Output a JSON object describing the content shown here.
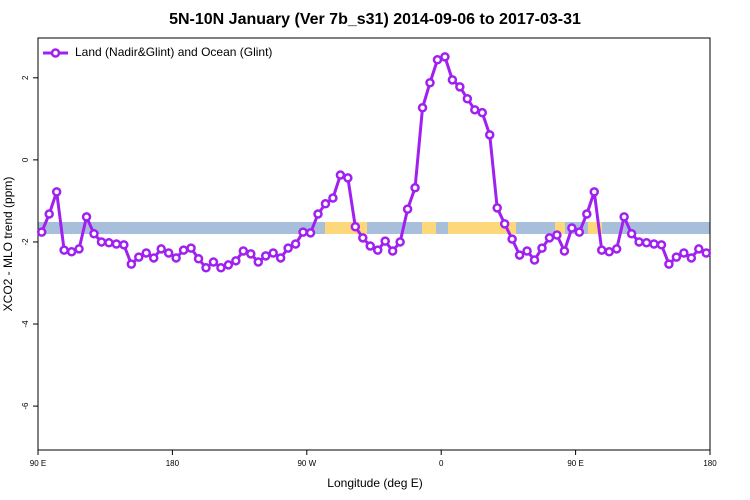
{
  "chart_data": {
    "type": "line",
    "title": "5N-10N January (Ver 7b_s31)   2014-09-06 to 2017-03-31",
    "x_label": "Longitude (deg E)",
    "y_label": "XCO2 - MLO trend (ppm)",
    "legend_position": "top-left",
    "xlim": [
      90,
      540
    ],
    "xticks": [
      {
        "value": 90,
        "label": "90 E"
      },
      {
        "value": 180,
        "label": "180"
      },
      {
        "value": 270,
        "label": "90 W"
      },
      {
        "value": 360,
        "label": "0"
      },
      {
        "value": 450,
        "label": "90 E"
      },
      {
        "value": 540,
        "label": "180"
      }
    ],
    "ylim": [
      -7.07,
      2.97
    ],
    "yticks": [
      -6,
      -4,
      -2,
      0,
      2
    ],
    "x": [
      92.5,
      97.5,
      102.5,
      107.5,
      112.5,
      117.5,
      122.5,
      127.5,
      132.5,
      137.5,
      142.5,
      147.5,
      152.5,
      157.5,
      162.5,
      167.5,
      172.5,
      177.5,
      182.5,
      187.5,
      192.5,
      197.5,
      202.5,
      207.5,
      212.5,
      217.5,
      222.5,
      227.5,
      232.5,
      237.5,
      242.5,
      247.5,
      252.5,
      257.5,
      262.5,
      267.5,
      272.5,
      277.5,
      282.5,
      287.5,
      292.5,
      297.5,
      302.5,
      307.5,
      312.5,
      317.5,
      322.5,
      327.5,
      332.5,
      337.5,
      342.5,
      347.5,
      352.5,
      357.5,
      362.5,
      367.5,
      372.5,
      377.5,
      382.5,
      387.5,
      392.5,
      397.5,
      402.5,
      407.5,
      412.5,
      417.5,
      422.5,
      427.5,
      432.5,
      437.5,
      442.5,
      447.5,
      452.5,
      457.5,
      462.5,
      467.5,
      472.5,
      477.5,
      482.5,
      487.5,
      492.5,
      497.5,
      502.5,
      507.5,
      512.5,
      517.5,
      522.5,
      527.5,
      532.5,
      537.5
    ],
    "series": [
      {
        "name": "Land (Nadir&Glint) and Ocean (Glint)",
        "color": "#a020f0",
        "values": [
          -1.76,
          -1.32,
          -0.78,
          -2.2,
          -2.24,
          -2.17,
          -1.39,
          -1.8,
          -2.0,
          -2.02,
          -2.05,
          -2.07,
          -2.54,
          -2.37,
          -2.27,
          -2.39,
          -2.17,
          -2.27,
          -2.39,
          -2.2,
          -2.15,
          -2.41,
          -2.63,
          -2.49,
          -2.63,
          -2.56,
          -2.46,
          -2.22,
          -2.29,
          -2.49,
          -2.34,
          -2.27,
          -2.39,
          -2.15,
          -2.05,
          -1.76,
          -1.78,
          -1.32,
          -1.07,
          -0.93,
          -0.37,
          -0.44,
          -1.63,
          -1.9,
          -2.1,
          -2.2,
          -1.98,
          -2.22,
          -2.0,
          -1.2,
          -0.68,
          1.27,
          1.88,
          2.44,
          2.51,
          1.95,
          1.78,
          1.49,
          1.22,
          1.15,
          0.61,
          -1.17,
          -1.56,
          -1.93,
          -2.32,
          -2.22,
          -2.44,
          -2.15,
          -1.9,
          -1.83,
          -2.22,
          -1.66,
          -1.76,
          -1.32,
          -0.78,
          -2.2,
          -2.24,
          -2.17,
          -1.39,
          -1.8,
          -2.0,
          -2.02,
          -2.05,
          -2.07,
          -2.54,
          -2.37,
          -2.27,
          -2.39,
          -2.17,
          -2.27
        ]
      }
    ]
  }
}
